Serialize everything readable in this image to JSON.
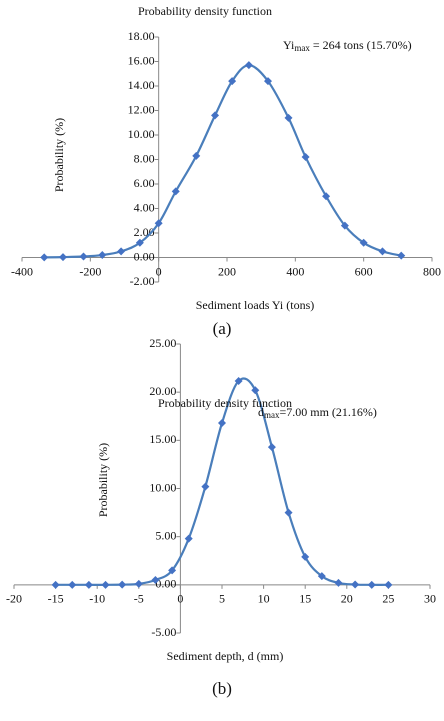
{
  "chart_data": [
    {
      "type": "line",
      "title": "Probability density function",
      "xlabel": "Sediment loads Yi (tons)",
      "ylabel": "Probability (%)",
      "annotation": {
        "base": "Yi",
        "subscript": "max",
        "text": " = 264 tons (15.70%)"
      },
      "caption": "(a)",
      "color": "#4a7ebb",
      "marker_color": "#4472c4",
      "x": [
        -335,
        -280,
        -220,
        -165,
        -110,
        -55,
        0,
        50,
        110,
        165,
        215,
        264,
        320,
        380,
        430,
        490,
        545,
        600,
        655,
        710
      ],
      "values": [
        0.01,
        0.03,
        0.08,
        0.2,
        0.5,
        1.2,
        2.8,
        5.4,
        8.3,
        11.6,
        14.4,
        15.7,
        14.4,
        11.4,
        8.2,
        5.0,
        2.6,
        1.2,
        0.5,
        0.15
      ],
      "xlim": [
        -400,
        800
      ],
      "xticks": [
        -400,
        -200,
        0,
        200,
        400,
        600,
        800
      ],
      "ylim": [
        -2,
        18
      ],
      "yticks": [
        {
          "value": 18,
          "label": "18.00"
        },
        {
          "value": 16,
          "label": "16.00"
        },
        {
          "value": 14,
          "label": "14.00"
        },
        {
          "value": 12,
          "label": "12.00"
        },
        {
          "value": 10,
          "label": "10.00"
        },
        {
          "value": 8,
          "label": "8.00"
        },
        {
          "value": 6,
          "label": "6.00"
        },
        {
          "value": 4,
          "label": "4.00"
        },
        {
          "value": 2,
          "label": "2.00"
        },
        {
          "value": 0,
          "label": "0.00"
        },
        {
          "value": -2,
          "label": "-2.00"
        }
      ],
      "grid": false
    },
    {
      "type": "line",
      "title": "Probability density function",
      "xlabel": "Sediment depth, d (mm)",
      "ylabel": "Probability (%)",
      "annotation": {
        "base": "d",
        "subscript": "max",
        "text": "=7.00 mm (21.16%)"
      },
      "caption": "(b)",
      "color": "#4a7ebb",
      "marker_color": "#4472c4",
      "x": [
        -15,
        -13,
        -11,
        -9,
        -7,
        -5,
        -3,
        -1,
        1,
        3,
        5,
        7,
        9,
        11,
        13,
        15,
        17,
        19,
        21,
        23,
        25
      ],
      "values": [
        0,
        0,
        0,
        0,
        0.02,
        0.1,
        0.5,
        1.5,
        4.8,
        10.2,
        16.8,
        21.16,
        20.2,
        14.3,
        7.5,
        2.9,
        0.9,
        0.2,
        0.03,
        0,
        0
      ],
      "xlim": [
        -20,
        30
      ],
      "xticks": [
        -20,
        -15,
        -10,
        -5,
        0,
        5,
        10,
        15,
        20,
        25,
        30
      ],
      "ylim": [
        -5,
        25
      ],
      "yticks": [
        {
          "value": 25,
          "label": "25.00"
        },
        {
          "value": 20,
          "label": "20.00"
        },
        {
          "value": 15,
          "label": "15.00"
        },
        {
          "value": 10,
          "label": "10.00"
        },
        {
          "value": 5,
          "label": "5.00"
        },
        {
          "value": 0,
          "label": "0.00"
        },
        {
          "value": -5,
          "label": "-5.00"
        }
      ],
      "grid": false
    }
  ]
}
